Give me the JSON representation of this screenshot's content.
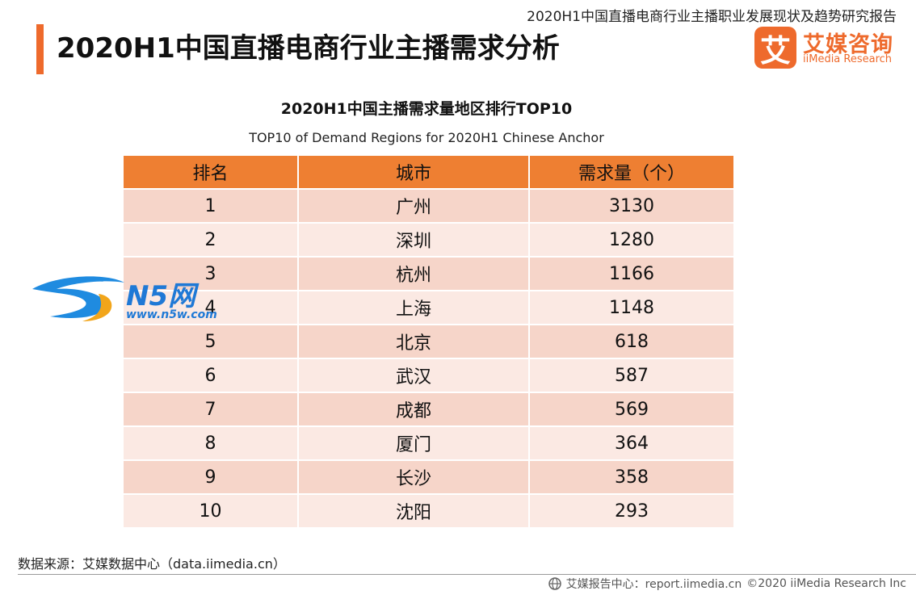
{
  "header": {
    "report_title": "2020H1中国直播电商行业主播职业发展现状及趋势研究报告",
    "page_title": "2020H1中国直播电商行业主播需求分析"
  },
  "logo": {
    "mark": "艾",
    "name_cn": "艾媒咨询",
    "name_en": "iiMedia Research",
    "accent_color": "#ee6a2c"
  },
  "table": {
    "title": "2020H1中国主播需求量地区排行TOP10",
    "subtitle": "TOP10 of Demand Regions for 2020H1 Chinese Anchor",
    "headers": [
      "排名",
      "城市",
      "需求量（个）"
    ],
    "rows": [
      [
        "1",
        "广州",
        "3130"
      ],
      [
        "2",
        "深圳",
        "1280"
      ],
      [
        "3",
        "杭州",
        "1166"
      ],
      [
        "4",
        "上海",
        "1148"
      ],
      [
        "5",
        "北京",
        "618"
      ],
      [
        "6",
        "武汉",
        "587"
      ],
      [
        "7",
        "成都",
        "569"
      ],
      [
        "8",
        "厦门",
        "364"
      ],
      [
        "9",
        "长沙",
        "358"
      ],
      [
        "10",
        "沈阳",
        "293"
      ]
    ],
    "header_color": "#ee7f32",
    "row_colors": [
      "#f6d5c9",
      "#fbe9e3"
    ]
  },
  "watermark": {
    "logo_text": "N5网",
    "url": "www.n5w.com"
  },
  "footer": {
    "source": "数据来源：艾媒数据中心（data.iimedia.cn）",
    "site": "艾媒报告中心：report.iimedia.cn",
    "copyright": "©2020  iiMedia Research  Inc"
  }
}
